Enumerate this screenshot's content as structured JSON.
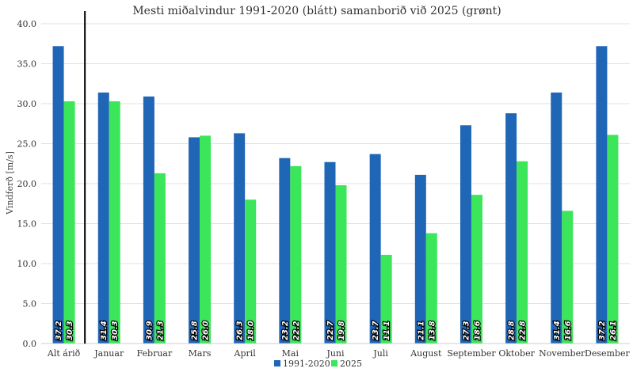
{
  "chart_data": {
    "type": "bar",
    "title": "Mesti miðalvindur 1991-2020 (blátt) samanborið við 2025 (grønt)",
    "ylabel": "Vindferð [m/s]",
    "xlabel": "",
    "ylim": [
      0,
      40
    ],
    "yticks": [
      "0.0",
      "5.0",
      "10.0",
      "15.0",
      "20.0",
      "25.0",
      "30.0",
      "35.0",
      "40.0"
    ],
    "grid": true,
    "legend": "bottom",
    "categories": [
      "Alt árið",
      "Januar",
      "Februar",
      "Mars",
      "April",
      "Mai",
      "Juni",
      "Juli",
      "August",
      "September",
      "Oktober",
      "November",
      "Desember"
    ],
    "series": [
      {
        "name": "1991-2020",
        "color": "#1F66B7",
        "values": [
          37.2,
          31.4,
          30.9,
          25.8,
          26.3,
          23.2,
          22.7,
          23.7,
          21.1,
          27.3,
          28.8,
          31.4,
          37.2
        ],
        "labels": [
          "37.2",
          "31.4",
          "30.9",
          "25.8",
          "26.3",
          "23.2",
          "22.7",
          "23.7",
          "21.1",
          "27.3",
          "28.8",
          "31.4",
          "37.2"
        ]
      },
      {
        "name": "2025",
        "color": "#3CE65A",
        "values": [
          30.3,
          30.3,
          21.3,
          26.0,
          18.0,
          22.2,
          19.8,
          11.1,
          13.8,
          18.6,
          22.8,
          16.6,
          26.1
        ],
        "labels": [
          "30.3",
          "30.3",
          "21.3",
          "26.0",
          "18.0",
          "22.2",
          "19.8",
          "11.1",
          "13.8",
          "18.6",
          "22.8",
          "16.6",
          "26.1"
        ]
      }
    ]
  }
}
